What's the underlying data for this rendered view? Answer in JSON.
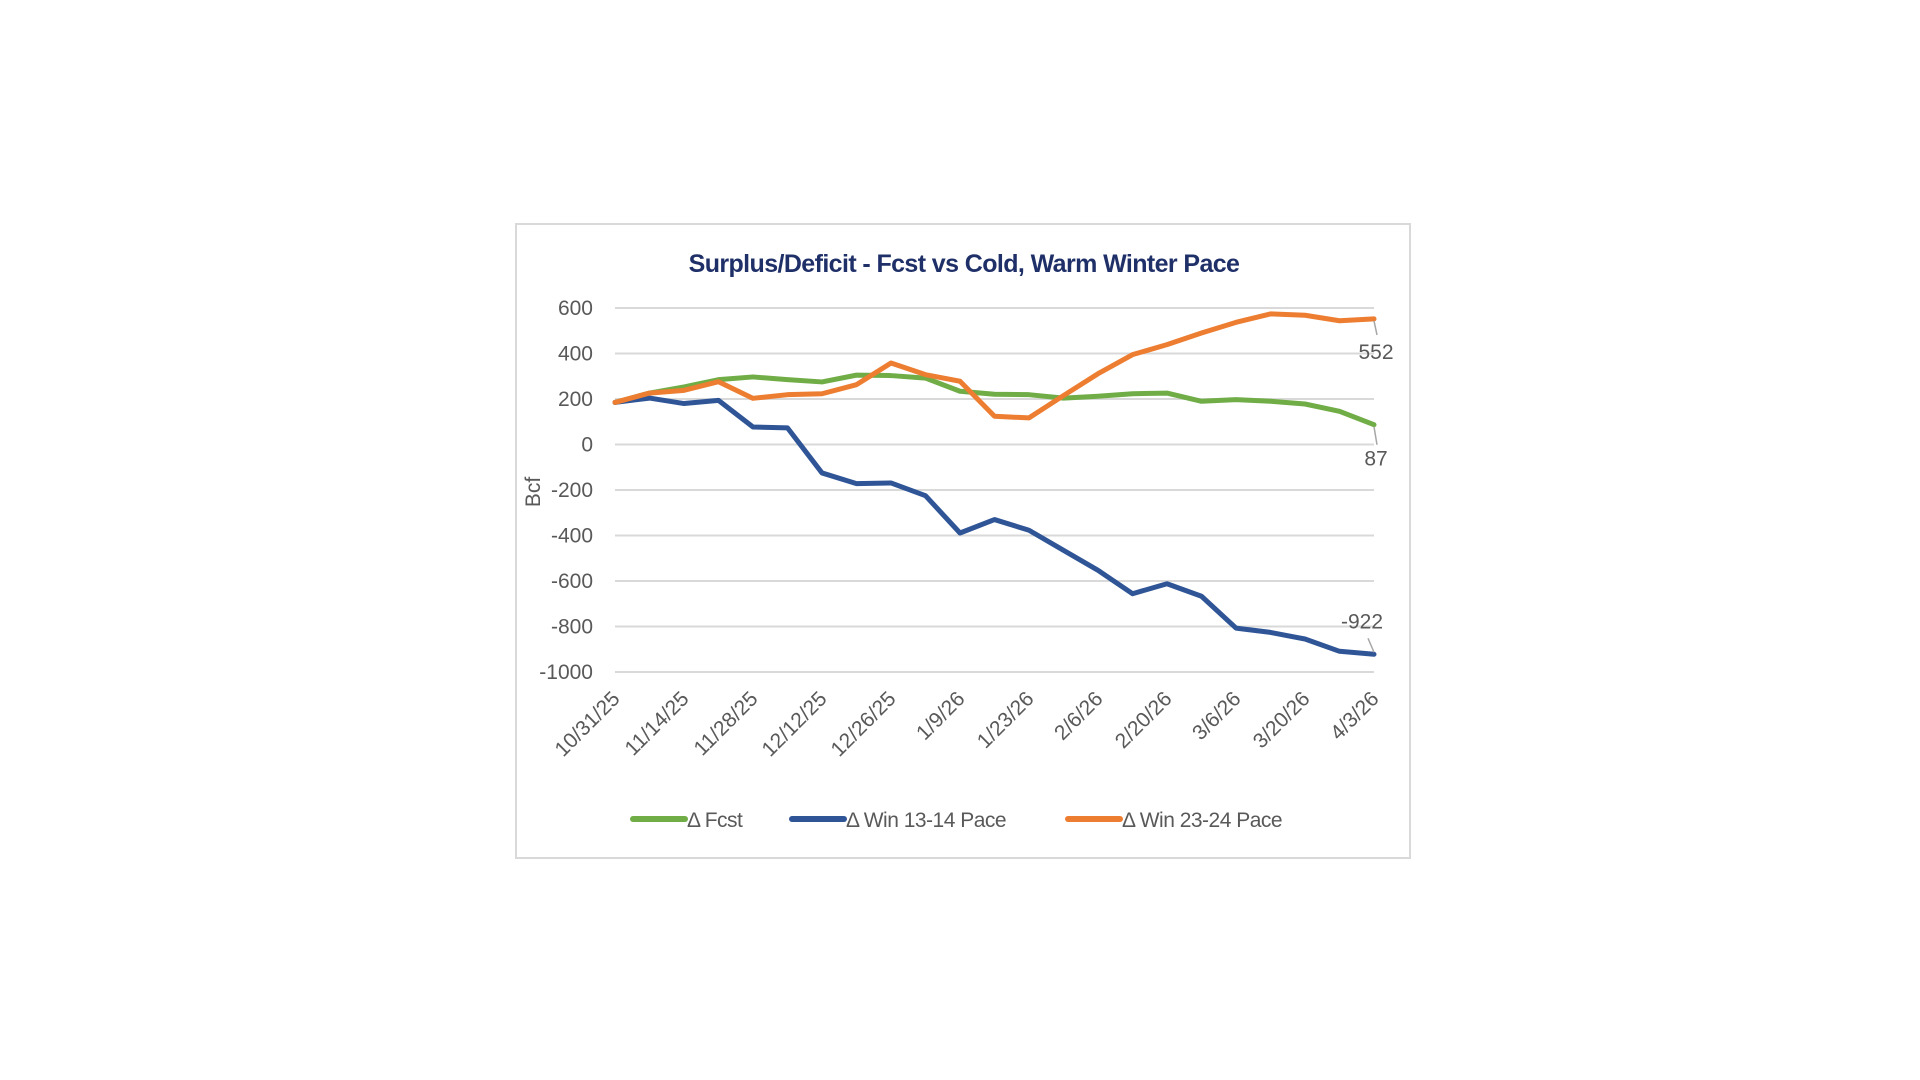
{
  "chart_data": {
    "type": "line",
    "title": "Surplus/Deficit - Fcst vs Cold, Warm Winter Pace",
    "xlabel": "",
    "ylabel": "Bcf",
    "ylim": [
      -1000,
      600
    ],
    "yticks": [
      600,
      400,
      200,
      0,
      -200,
      -400,
      -600,
      -800,
      -1000
    ],
    "grid": true,
    "legend_position": "bottom",
    "x_tick_labels": [
      "10/31/25",
      "11/14/25",
      "11/28/25",
      "12/12/25",
      "12/26/25",
      "1/9/26",
      "1/23/26",
      "2/6/26",
      "2/20/26",
      "3/6/26",
      "3/20/26",
      "4/3/26"
    ],
    "x": [
      "10/31/25",
      "11/7/25",
      "11/14/25",
      "11/21/25",
      "11/28/25",
      "12/5/25",
      "12/12/25",
      "12/19/25",
      "12/26/25",
      "1/2/26",
      "1/9/26",
      "1/16/26",
      "1/23/26",
      "1/30/26",
      "2/6/26",
      "2/13/26",
      "2/20/26",
      "2/27/26",
      "3/6/26",
      "3/13/26",
      "3/20/26",
      "3/27/26",
      "4/3/26"
    ],
    "series": [
      {
        "name": "Δ Fcst",
        "color": "#70ad47",
        "end_label": "87",
        "values": [
          185,
          226,
          253,
          285,
          297,
          285,
          275,
          305,
          303,
          292,
          234,
          221,
          219,
          204,
          212,
          223,
          226,
          190,
          197,
          190,
          178,
          146,
          87
        ]
      },
      {
        "name": "Δ Win 13-14 Pace",
        "color": "#2f5597",
        "end_label": "-922",
        "values": [
          185,
          204,
          180,
          194,
          77,
          73,
          -125,
          -172,
          -169,
          -225,
          -389,
          -330,
          -377,
          -465,
          -553,
          -656,
          -612,
          -667,
          -807,
          -826,
          -855,
          -909,
          -922
        ]
      },
      {
        "name": "Δ Win 23-24 Pace",
        "color": "#ed7d31",
        "end_label": "552",
        "values": [
          185,
          226,
          238,
          276,
          203,
          219,
          223,
          263,
          358,
          307,
          278,
          124,
          117,
          215,
          311,
          395,
          439,
          490,
          537,
          574,
          568,
          544,
          552
        ]
      }
    ]
  }
}
